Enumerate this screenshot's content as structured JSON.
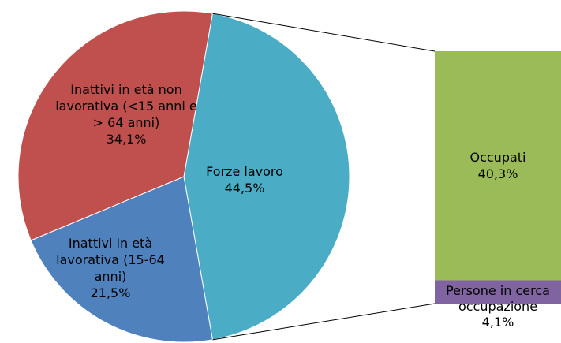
{
  "chart_data": {
    "type": "pie-of-bar",
    "pie": {
      "categories": [
        "Forze lavoro",
        "Inattivi in età lavorativa (15-64 anni)",
        "Inattivi in età non lavorativa (<15 anni e > 64 anni)"
      ],
      "values": [
        44.5,
        21.5,
        34.1
      ],
      "value_labels": [
        "44,5%",
        "21,5%",
        "34,1%"
      ],
      "colors": [
        "#4bacc6",
        "#4f81bd",
        "#c0504d"
      ]
    },
    "bar": {
      "categories": [
        "Occupati",
        "Persone in cerca occupazione"
      ],
      "values": [
        40.3,
        4.1
      ],
      "value_labels": [
        "40,3%",
        "4,1%"
      ],
      "colors": [
        "#9bbb59",
        "#8064a2"
      ]
    }
  }
}
